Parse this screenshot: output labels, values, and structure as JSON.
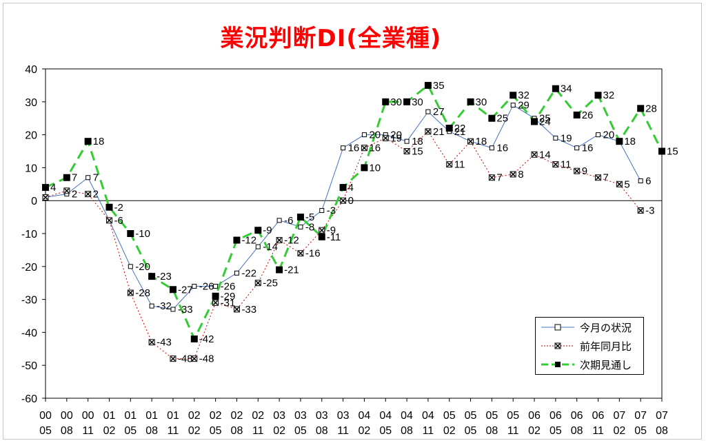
{
  "chart_data": {
    "type": "line",
    "title": "業況判断DI(全業種)",
    "xlabel": "",
    "ylabel": "",
    "ylim": [
      -60,
      40
    ],
    "yticks": [
      40,
      30,
      20,
      10,
      0,
      -10,
      -20,
      -30,
      -40,
      -50,
      -60
    ],
    "grid": false,
    "legend_position": "bottom-right",
    "categories": [
      [
        "00",
        "05"
      ],
      [
        "00",
        "08"
      ],
      [
        "00",
        "11"
      ],
      [
        "01",
        "02"
      ],
      [
        "01",
        "05"
      ],
      [
        "01",
        "08"
      ],
      [
        "01",
        "11"
      ],
      [
        "02",
        "02"
      ],
      [
        "02",
        "05"
      ],
      [
        "02",
        "08"
      ],
      [
        "02",
        "11"
      ],
      [
        "03",
        "02"
      ],
      [
        "03",
        "05"
      ],
      [
        "03",
        "08"
      ],
      [
        "03",
        "11"
      ],
      [
        "04",
        "02"
      ],
      [
        "04",
        "05"
      ],
      [
        "04",
        "08"
      ],
      [
        "04",
        "11"
      ],
      [
        "05",
        "02"
      ],
      [
        "05",
        "05"
      ],
      [
        "05",
        "08"
      ],
      [
        "05",
        "11"
      ],
      [
        "06",
        "02"
      ],
      [
        "06",
        "05"
      ],
      [
        "06",
        "08"
      ],
      [
        "06",
        "11"
      ],
      [
        "07",
        "02"
      ],
      [
        "07",
        "05"
      ],
      [
        "07",
        "08"
      ]
    ],
    "series": [
      {
        "name": "今月の状況",
        "color": "#4472c4",
        "marker": "open-square",
        "line_style": "solid",
        "values": [
          1,
          2,
          7,
          -6,
          -20,
          -32,
          -33,
          -26,
          -26,
          -22,
          -14,
          -6,
          -8,
          -3,
          16,
          20,
          20,
          18,
          27,
          21,
          18,
          16,
          29,
          25,
          19,
          16,
          20,
          18,
          6,
          null
        ]
      },
      {
        "name": "前年同月比",
        "color": "#cc0000",
        "marker": "x-square",
        "line_style": "dotted",
        "values": [
          1,
          3,
          2,
          -6,
          -28,
          -43,
          -48,
          -48,
          -31,
          -33,
          -25,
          -12,
          -16,
          -9,
          0,
          16,
          19,
          15,
          21,
          11,
          18,
          7,
          8,
          14,
          11,
          9,
          7,
          5,
          -3,
          null
        ]
      },
      {
        "name": "次期見通し",
        "color": "#33cc33",
        "marker": "filled-square",
        "line_style": "dashed",
        "values": [
          4,
          7,
          18,
          -2,
          -10,
          -23,
          -27,
          -42,
          -29,
          -12,
          -9,
          -21,
          -5,
          -11,
          4,
          10,
          30,
          30,
          35,
          22,
          30,
          25,
          32,
          24,
          34,
          26,
          32,
          18,
          28,
          15
        ]
      }
    ],
    "data_labels": [
      {
        "series": 2,
        "i": 0,
        "text": "4"
      },
      {
        "series": 0,
        "i": 1,
        "text": "2"
      },
      {
        "series": 2,
        "i": 1,
        "text": "7"
      },
      {
        "series": 1,
        "i": 2,
        "text": "2"
      },
      {
        "series": 0,
        "i": 2,
        "text": "7"
      },
      {
        "series": 2,
        "i": 2,
        "text": "18"
      },
      {
        "series": 2,
        "i": 3,
        "text": "-2"
      },
      {
        "series": 1,
        "i": 3,
        "text": "-6"
      },
      {
        "series": 2,
        "i": 4,
        "text": "-10"
      },
      {
        "series": 0,
        "i": 4,
        "text": "-20"
      },
      {
        "series": 1,
        "i": 4,
        "text": "-28"
      },
      {
        "series": 2,
        "i": 5,
        "text": "-23"
      },
      {
        "series": 0,
        "i": 5,
        "text": "-32"
      },
      {
        "series": 1,
        "i": 5,
        "text": "-43"
      },
      {
        "series": 2,
        "i": 6,
        "text": "-27"
      },
      {
        "series": 0,
        "i": 6,
        "text": "-33"
      },
      {
        "series": 1,
        "i": 6,
        "text": "-48"
      },
      {
        "series": 0,
        "i": 7,
        "text": "-26"
      },
      {
        "series": 2,
        "i": 7,
        "text": "-42"
      },
      {
        "series": 1,
        "i": 7,
        "text": "-48"
      },
      {
        "series": 0,
        "i": 8,
        "text": "-26"
      },
      {
        "series": 2,
        "i": 8,
        "text": "-29"
      },
      {
        "series": 1,
        "i": 8,
        "text": "-31"
      },
      {
        "series": 0,
        "i": 9,
        "text": "-22"
      },
      {
        "series": 2,
        "i": 9,
        "text": "-12"
      },
      {
        "series": 1,
        "i": 9,
        "text": "-33"
      },
      {
        "series": 2,
        "i": 10,
        "text": "-9"
      },
      {
        "series": 0,
        "i": 10,
        "text": "-14"
      },
      {
        "series": 1,
        "i": 10,
        "text": "-25"
      },
      {
        "series": 0,
        "i": 11,
        "text": "-6"
      },
      {
        "series": 1,
        "i": 11,
        "text": "-12"
      },
      {
        "series": 2,
        "i": 11,
        "text": "-21"
      },
      {
        "series": 2,
        "i": 12,
        "text": "-5"
      },
      {
        "series": 0,
        "i": 12,
        "text": "-8"
      },
      {
        "series": 1,
        "i": 12,
        "text": "-16"
      },
      {
        "series": 0,
        "i": 13,
        "text": "-3"
      },
      {
        "series": 1,
        "i": 13,
        "text": "-9"
      },
      {
        "series": 2,
        "i": 13,
        "text": "-11"
      },
      {
        "series": 0,
        "i": 14,
        "text": "16"
      },
      {
        "series": 2,
        "i": 14,
        "text": "4"
      },
      {
        "series": 1,
        "i": 14,
        "text": "0"
      },
      {
        "series": 0,
        "i": 15,
        "text": "20"
      },
      {
        "series": 1,
        "i": 15,
        "text": "16"
      },
      {
        "series": 2,
        "i": 15,
        "text": "10"
      },
      {
        "series": 2,
        "i": 16,
        "text": "30"
      },
      {
        "series": 0,
        "i": 16,
        "text": "20"
      },
      {
        "series": 1,
        "i": 16,
        "text": "19"
      },
      {
        "series": 2,
        "i": 17,
        "text": "30"
      },
      {
        "series": 0,
        "i": 17,
        "text": "18"
      },
      {
        "series": 1,
        "i": 17,
        "text": "15"
      },
      {
        "series": 2,
        "i": 18,
        "text": "35"
      },
      {
        "series": 0,
        "i": 18,
        "text": "27"
      },
      {
        "series": 1,
        "i": 18,
        "text": "21"
      },
      {
        "series": 2,
        "i": 19,
        "text": "22"
      },
      {
        "series": 0,
        "i": 19,
        "text": "21"
      },
      {
        "series": 1,
        "i": 19,
        "text": "11"
      },
      {
        "series": 2,
        "i": 20,
        "text": "30"
      },
      {
        "series": 0,
        "i": 20,
        "text": "18"
      },
      {
        "series": 2,
        "i": 21,
        "text": "25"
      },
      {
        "series": 0,
        "i": 21,
        "text": "16"
      },
      {
        "series": 1,
        "i": 21,
        "text": "7"
      },
      {
        "series": 2,
        "i": 22,
        "text": "32"
      },
      {
        "series": 0,
        "i": 22,
        "text": "29"
      },
      {
        "series": 1,
        "i": 22,
        "text": "8"
      },
      {
        "series": 0,
        "i": 23,
        "text": "25"
      },
      {
        "series": 2,
        "i": 23,
        "text": "24"
      },
      {
        "series": 1,
        "i": 23,
        "text": "14"
      },
      {
        "series": 2,
        "i": 24,
        "text": "34"
      },
      {
        "series": 0,
        "i": 24,
        "text": "19"
      },
      {
        "series": 1,
        "i": 24,
        "text": "11"
      },
      {
        "series": 2,
        "i": 25,
        "text": "26"
      },
      {
        "series": 0,
        "i": 25,
        "text": "16"
      },
      {
        "series": 1,
        "i": 25,
        "text": "9"
      },
      {
        "series": 2,
        "i": 26,
        "text": "32"
      },
      {
        "series": 0,
        "i": 26,
        "text": "20"
      },
      {
        "series": 1,
        "i": 26,
        "text": "7"
      },
      {
        "series": 2,
        "i": 27,
        "text": "18"
      },
      {
        "series": 1,
        "i": 27,
        "text": "5"
      },
      {
        "series": 2,
        "i": 28,
        "text": "28"
      },
      {
        "series": 0,
        "i": 28,
        "text": "6"
      },
      {
        "series": 1,
        "i": 28,
        "text": "-3"
      },
      {
        "series": 2,
        "i": 29,
        "text": "15"
      }
    ]
  }
}
